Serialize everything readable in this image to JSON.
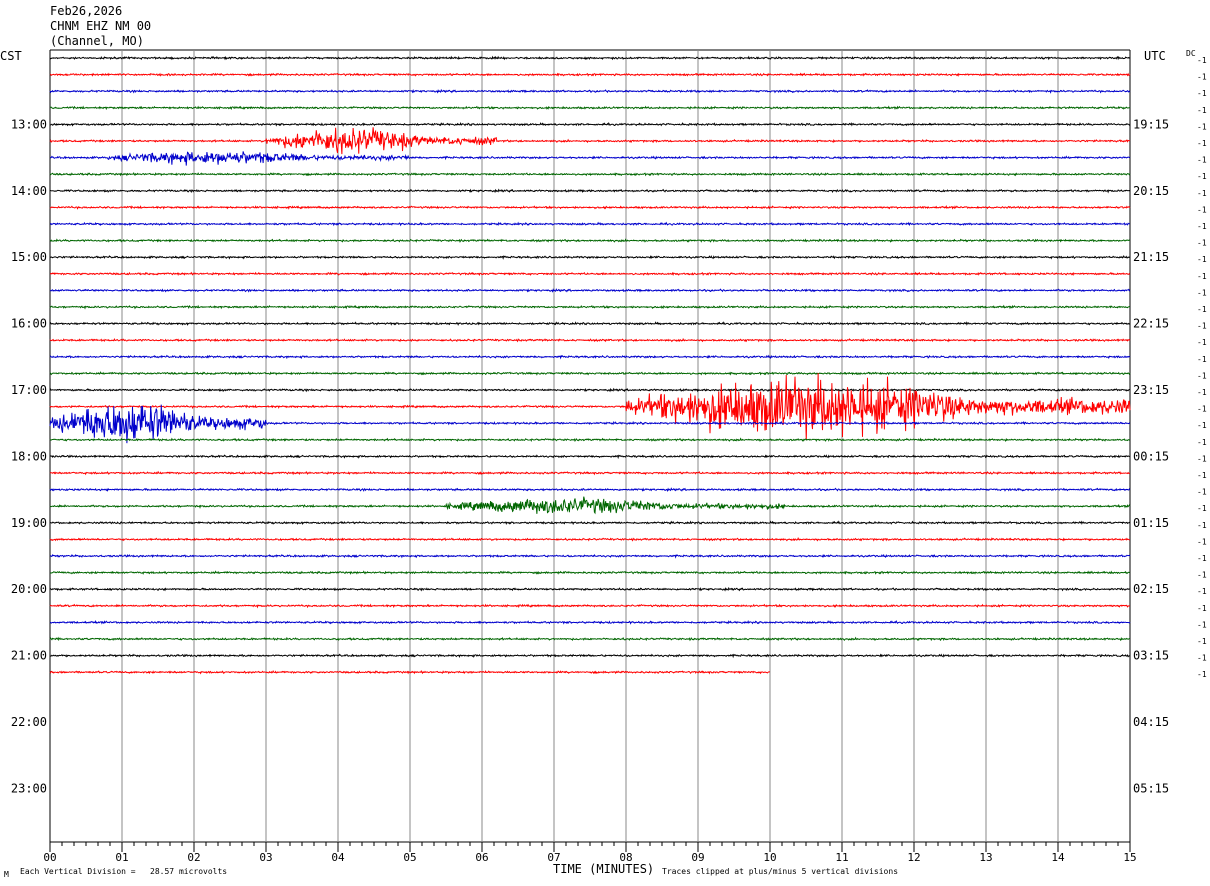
{
  "header": {
    "date": "Feb26,2026",
    "station": "CHNM EHZ NM 00",
    "channel": "(Channel, MO)"
  },
  "left_tz": "CST",
  "right_tz": "UTC",
  "dc_label": "DC",
  "row_offset_label": "-1",
  "footer": {
    "scale_note": "Each Vertical Division =   28.57 microvolts",
    "xaxis_title": "TIME (MINUTES)",
    "clip_note": "Traces clipped at plus/minus 5 vertical divisions",
    "corner_mark": "M"
  },
  "colors": {
    "trace_cycle": [
      "#000000",
      "#ff0000",
      "#0000cc",
      "#006600"
    ],
    "grid": "#888888"
  },
  "chart_data": {
    "type": "line",
    "title": "CHNM EHZ NM 00",
    "xlabel": "TIME (MINUTES)",
    "xlim": [
      0,
      15
    ],
    "x_ticks": [
      "00",
      "01",
      "02",
      "03",
      "04",
      "05",
      "06",
      "07",
      "08",
      "09",
      "10",
      "11",
      "12",
      "13",
      "14",
      "15"
    ],
    "left_hour_labels": [
      "13:00",
      "14:00",
      "15:00",
      "16:00",
      "17:00",
      "18:00",
      "19:00",
      "20:00",
      "21:00",
      "22:00",
      "23:00"
    ],
    "right_hour_labels": [
      "19:15",
      "20:15",
      "21:15",
      "22:15",
      "23:15",
      "00:15",
      "01:15",
      "02:15",
      "03:15",
      "04:15",
      "05:15"
    ],
    "rows_per_hour": 4,
    "minutes_per_row": 15,
    "recorded_rows": 38,
    "last_row_end_minute": 10,
    "events": [
      {
        "row": 5,
        "start_min": 3.0,
        "end_min": 6.2,
        "amplitude": 0.9
      },
      {
        "row": 6,
        "start_min": 0.8,
        "end_min": 5.0,
        "amplitude": 0.45
      },
      {
        "row": 21,
        "start_min": 8.0,
        "end_min": 15.0,
        "amplitude": 2.2
      },
      {
        "row": 22,
        "start_min": 0.0,
        "end_min": 3.0,
        "amplitude": 1.6
      },
      {
        "row": 27,
        "start_min": 5.5,
        "end_min": 10.2,
        "amplitude": 0.55
      }
    ]
  }
}
